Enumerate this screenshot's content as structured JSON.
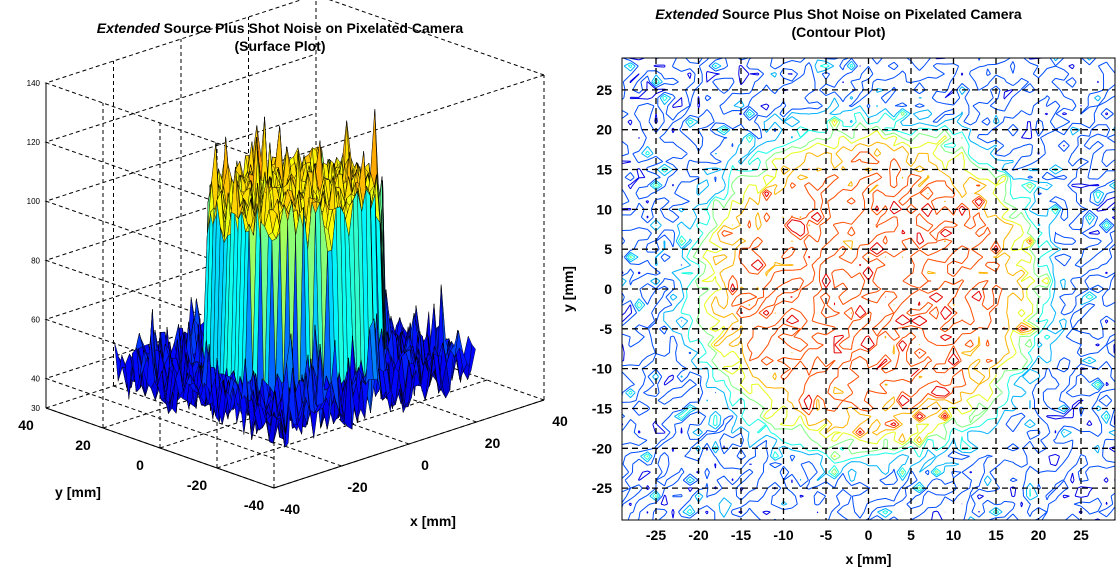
{
  "colors": {
    "jet": [
      "#00008f",
      "#0000ff",
      "#0080ff",
      "#00ffff",
      "#80ff80",
      "#ffff00",
      "#ff8000",
      "#ff0000",
      "#800000"
    ],
    "grid": "#000000",
    "background": "#ffffff"
  },
  "chart_data": [
    {
      "type": "surface",
      "title_italic": "Extended",
      "title_rest": "Source Plus Shot Noise on Pixelated Camera",
      "subtitle": "(Surface Plot)",
      "xlabel": "x [mm]",
      "ylabel": "y [mm]",
      "zlabel": "",
      "xlim": [
        -40,
        40
      ],
      "ylim": [
        -40,
        40
      ],
      "zlim": [
        30,
        140
      ],
      "x_ticks": [
        "-40",
        "-20",
        "0",
        "20",
        "40"
      ],
      "y_ticks": [
        "-40",
        "-20",
        "0",
        "20",
        "40"
      ],
      "z_ticks": [
        "30",
        "40",
        "60",
        "80",
        "100",
        "120",
        "140"
      ],
      "background_level": 40,
      "peak_level": 120,
      "source_radius_mm": 20,
      "grid": true
    },
    {
      "type": "contour",
      "title_italic": "Extended",
      "title_rest": "Source Plus Shot Noise on Pixelated Camera",
      "subtitle": "(Contour Plot)",
      "xlabel": "x [mm]",
      "ylabel": "y [mm]",
      "xlim": [
        -29,
        29
      ],
      "ylim": [
        -29,
        29
      ],
      "x_ticks": [
        -25,
        -20,
        -15,
        -10,
        -5,
        0,
        5,
        10,
        15,
        20,
        25
      ],
      "y_ticks": [
        -25,
        -20,
        -15,
        -10,
        -5,
        0,
        5,
        10,
        15,
        20,
        25
      ],
      "source_radius_mm": 20,
      "grid": true
    }
  ]
}
